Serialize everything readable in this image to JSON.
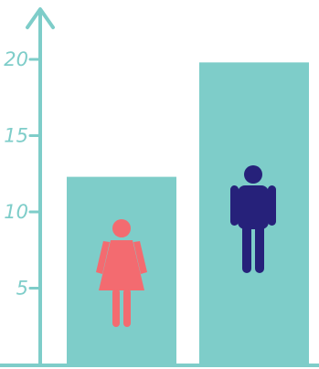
{
  "chart_data": {
    "type": "bar",
    "categories": [
      "female",
      "male"
    ],
    "values": [
      12.3,
      19.8
    ],
    "ylim": [
      0,
      23
    ],
    "yticks": [
      5,
      10,
      15,
      20
    ],
    "title": "",
    "xlabel": "",
    "ylabel": "",
    "grid": false,
    "legend": "none"
  },
  "icons": [
    "female-icon",
    "male-icon"
  ],
  "colors": {
    "bar": "#7ecdc9",
    "axis": "#7ecdc9",
    "female": "#f36b70",
    "male": "#26217a",
    "background": "#ffffff"
  }
}
